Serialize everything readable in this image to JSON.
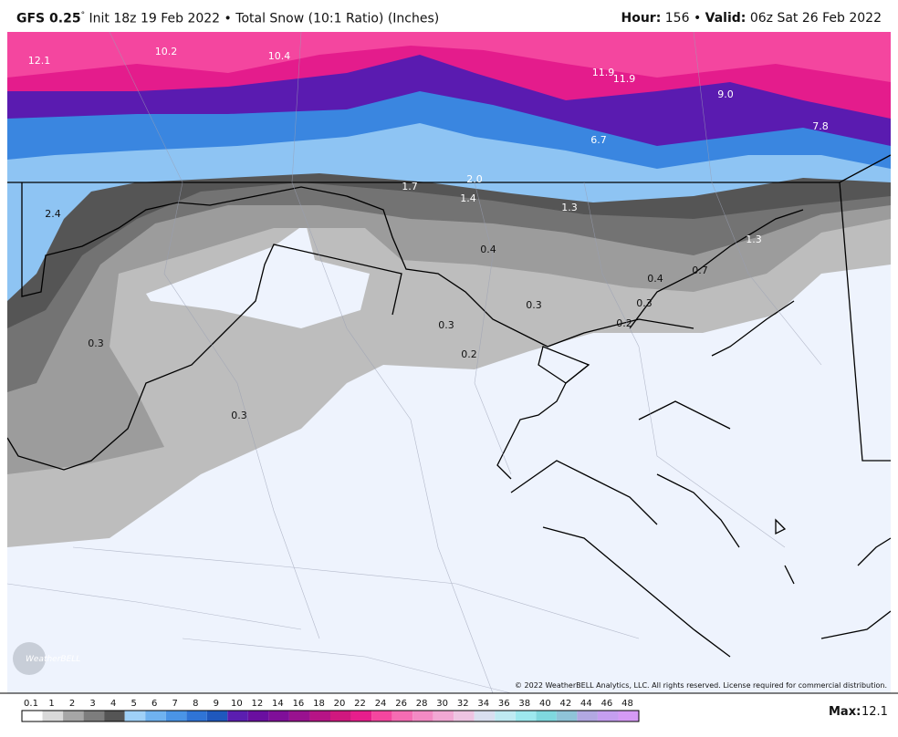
{
  "header": {
    "model": "GFS 0.25",
    "degree": "°",
    "init": "Init 18z 19 Feb 2022",
    "separator": "•",
    "product": "Total Snow (10:1 Ratio) (Inches)",
    "hour_label": "Hour:",
    "hour": "156",
    "valid_label": "Valid:",
    "valid": "06z Sat 26 Feb 2022"
  },
  "map": {
    "labels": [
      "12.1",
      "10.2",
      "10.4",
      "11.9",
      "11.9",
      "9.0",
      "6.7",
      "7.8",
      "2.4",
      "2.0",
      "1.7",
      "1.4",
      "1.3",
      "1.3",
      "0.4",
      "0.4",
      "0.7",
      "0.3",
      "0.3",
      "0.2",
      "0.3",
      "0.2",
      "0.3",
      "0.3"
    ],
    "logo": "WeatherBELL",
    "copyright": "© 2022 WeatherBELL Analytics, LLC. All rights reserved. License required for commercial distribution."
  },
  "legend": {
    "ticks": [
      "0.1",
      "1",
      "2",
      "3",
      "4",
      "5",
      "6",
      "7",
      "8",
      "9",
      "10",
      "12",
      "14",
      "16",
      "18",
      "20",
      "22",
      "24",
      "26",
      "28",
      "30",
      "32",
      "34",
      "36",
      "38",
      "40",
      "42",
      "44",
      "46",
      "48"
    ],
    "max_label": "Max:",
    "max": "12.1"
  }
}
